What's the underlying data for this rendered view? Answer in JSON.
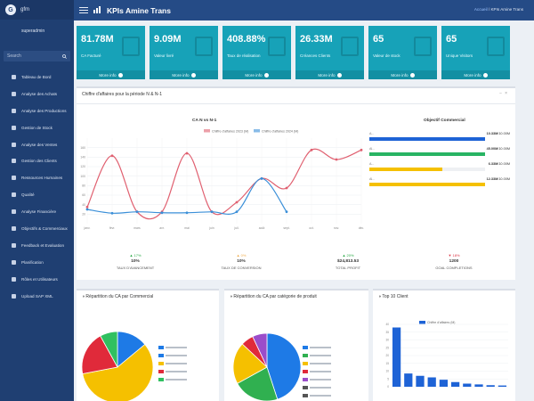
{
  "app": {
    "brand": "gfm",
    "user": "superadmin",
    "search_placeholder": "Search",
    "title": "KPIs Amine Trans"
  },
  "breadcrumb": {
    "home": "Accueil",
    "current": "KPIs Amine Trans"
  },
  "sidebar": {
    "items": [
      {
        "label": "Tableau de Bord"
      },
      {
        "label": "Analyse des Achats"
      },
      {
        "label": "Analyse des Productions"
      },
      {
        "label": "Gestion de Stock"
      },
      {
        "label": "Analyse des Ventes"
      },
      {
        "label": "Gestion des Clients"
      },
      {
        "label": "Ressources Humaines"
      },
      {
        "label": "Qualité"
      },
      {
        "label": "Analyse Financière"
      },
      {
        "label": "Objectifs & Commerciaux"
      },
      {
        "label": "Feedback et Evaluation"
      },
      {
        "label": "Planification"
      },
      {
        "label": "Rôles et Utilisateurs"
      },
      {
        "label": "Upload SAP XML"
      }
    ]
  },
  "kpis": [
    {
      "value": "81.78M",
      "label": "CA Facturé",
      "more": "More info",
      "icon": "money-icon"
    },
    {
      "value": "9.09M",
      "label": "Valeur livré",
      "more": "More info",
      "icon": "truck-icon"
    },
    {
      "value": "408.88%",
      "label": "Taux de réalisation",
      "more": "More info",
      "icon": "chart-icon"
    },
    {
      "value": "26.33M",
      "label": "Créances Clients",
      "more": "More info",
      "icon": "document-icon"
    },
    {
      "value": "65",
      "label": "Valeur de stock",
      "more": "More info",
      "icon": "box-icon"
    },
    {
      "value": "65",
      "label": "Unique Visitors",
      "more": "More info",
      "icon": "boxes-icon"
    }
  ],
  "main_panel": {
    "title": "Chiffre d'affaires pour la période N & N-1",
    "chart_title": "CA N vs N-1",
    "objective_title": "Objectif Commercial"
  },
  "chart_data": [
    {
      "type": "line",
      "title": "CA N vs N-1",
      "x": [
        "janv.",
        "févr.",
        "mars",
        "avr.",
        "mai",
        "juin",
        "juil.",
        "août",
        "sept.",
        "oct.",
        "nov.",
        "déc."
      ],
      "ylim": [
        0,
        180
      ],
      "yticks": [
        20,
        40,
        60,
        80,
        100,
        120,
        140,
        160
      ],
      "series": [
        {
          "name": "Chiffre d'affaires 2023 (M)",
          "color": "#e06070",
          "values": [
            35,
            143,
            25,
            25,
            148,
            25,
            45,
            95,
            75,
            155,
            135,
            155
          ]
        },
        {
          "name": "Chiffre d'affaires 2024 (M)",
          "color": "#3a8fd8",
          "values": [
            30,
            22,
            25,
            23,
            23,
            25,
            25,
            95,
            25,
            null,
            null,
            null
          ]
        }
      ],
      "grid": true,
      "legend": "top"
    },
    {
      "type": "bar",
      "title": "Top 10 Client",
      "series": [
        {
          "name": "Chiffre d'affaires (M)",
          "color": "#1e63d6",
          "values": [
            38,
            8.5,
            7,
            6,
            4.5,
            3,
            2,
            1.5,
            1,
            0.8
          ]
        }
      ],
      "yticks": [
        0,
        5,
        10,
        15,
        20,
        25,
        30,
        35,
        40
      ],
      "ylim": [
        0,
        40
      ],
      "legend": "top"
    },
    {
      "type": "pie",
      "title": "Répartition du CA par Commercial",
      "slices": [
        {
          "color": "#1e7ae6",
          "value": 14
        },
        {
          "color": "#f5c000",
          "value": 58
        },
        {
          "color": "#e02a3a",
          "value": 20
        },
        {
          "color": "#30c060",
          "value": 8
        }
      ]
    },
    {
      "type": "pie",
      "title": "Répartition du CA par catégorie de produit",
      "slices": [
        {
          "color": "#1e7ae6",
          "value": 45
        },
        {
          "color": "#30b050",
          "value": 22
        },
        {
          "color": "#f5c000",
          "value": 20
        },
        {
          "color": "#e02a3a",
          "value": 6
        },
        {
          "color": "#9b4dca",
          "value": 7
        }
      ]
    }
  ],
  "objectives": [
    {
      "label": "A...",
      "value": "10.33M",
      "target": "/10.00M",
      "color": "#1e63d6",
      "fill": 1.0
    },
    {
      "label": "Al...",
      "value": "45.00M",
      "target": "/10.00M",
      "color": "#28b463",
      "fill": 1.0
    },
    {
      "label": "A...",
      "value": "6.33M",
      "target": "/10.00M",
      "color": "#f5c000",
      "fill": 0.63
    },
    {
      "label": "Al...",
      "value": "12.33M",
      "target": "/10.00M",
      "color": "#f5c000",
      "fill": 1.0
    }
  ],
  "stats": [
    {
      "pct": "▲ 17%",
      "value": "10%",
      "label": "TAUX D'AVANCEMENT",
      "color": "#28a745"
    },
    {
      "pct": "▲ 0%",
      "value": "10%",
      "label": "TAUX DE CONVERSION",
      "color": "#f0ad4e"
    },
    {
      "pct": "▲ 20%",
      "value": "$24,813.53",
      "label": "TOTAL PROFIT",
      "color": "#28a745"
    },
    {
      "pct": "▼ 18%",
      "value": "1200",
      "label": "GOAL COMPLETIONS",
      "color": "#dc3545"
    }
  ],
  "bottom_panels": {
    "pie1_title": "Répartition du CA par Commercial",
    "pie2_title": "Répartition du CA par catégorie de produit",
    "bar_title": "Top 10 Client"
  },
  "colors": {
    "sidebar": "#1f3f72",
    "topbar": "#254b86",
    "tile": "#17a2b8"
  }
}
